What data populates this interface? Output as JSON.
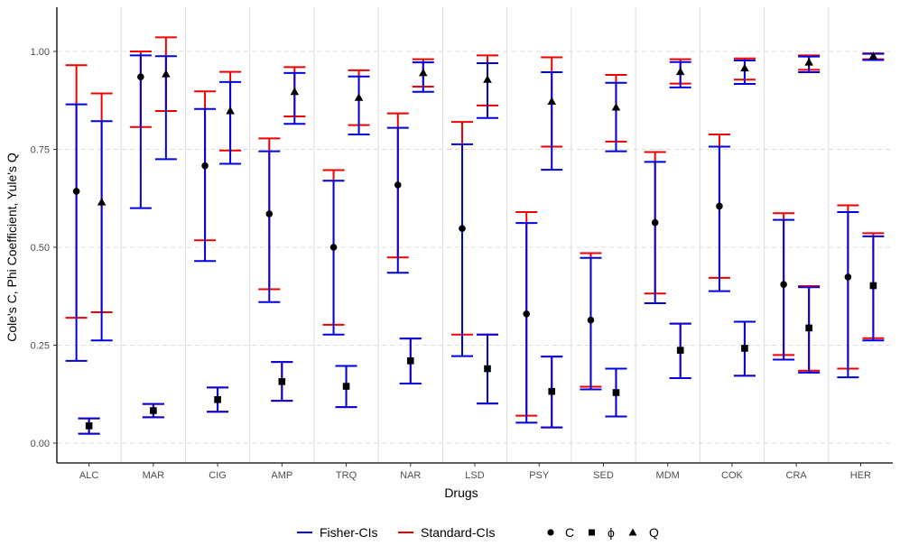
{
  "chart_data": {
    "type": "errorbar",
    "xlabel": "Drugs",
    "ylabel": "Cole's C, Phi Coefficient, Yule's Q",
    "ylim": [
      -0.05,
      1.11
    ],
    "yticks": [
      0.0,
      0.25,
      0.5,
      0.75,
      1.0
    ],
    "ytick_labels": [
      "0.00",
      "0.25",
      "0.50",
      "0.75",
      "1.00"
    ],
    "categories": [
      "ALC",
      "MAR",
      "CIG",
      "AMP",
      "TRQ",
      "NAR",
      "LSD",
      "PSY",
      "SED",
      "MDM",
      "COK",
      "CRA",
      "HER"
    ],
    "colors": {
      "fisher": "#0000dd",
      "standard": "#ee0000",
      "point": "#000000",
      "grid": "#dddddd"
    },
    "legend": {
      "position": "bottom",
      "fisher_label": "Fisher-CIs",
      "standard_label": "Standard-CIs",
      "C_label": "C",
      "phi_label": "ϕ",
      "Q_label": "Q"
    },
    "series": [
      {
        "name": "C",
        "marker": "circle",
        "values": [
          0.643,
          0.935,
          0.708,
          0.585,
          0.5,
          0.659,
          0.548,
          0.33,
          0.314,
          0.563,
          0.605,
          0.405,
          0.424
        ],
        "fisher_ci": [
          [
            0.21,
            0.865
          ],
          [
            0.6,
            0.99
          ],
          [
            0.465,
            0.853
          ],
          [
            0.36,
            0.745
          ],
          [
            0.277,
            0.67
          ],
          [
            0.435,
            0.805
          ],
          [
            0.222,
            0.763
          ],
          [
            0.052,
            0.562
          ],
          [
            0.137,
            0.473
          ],
          [
            0.357,
            0.718
          ],
          [
            0.388,
            0.757
          ],
          [
            0.213,
            0.57
          ],
          [
            0.168,
            0.59
          ]
        ],
        "standard_ci": [
          [
            0.32,
            0.965
          ],
          [
            0.807,
            1.0
          ],
          [
            0.518,
            0.898
          ],
          [
            0.393,
            0.778
          ],
          [
            0.302,
            0.697
          ],
          [
            0.474,
            0.842
          ],
          [
            0.277,
            0.82
          ],
          [
            0.07,
            0.59
          ],
          [
            0.144,
            0.485
          ],
          [
            0.382,
            0.743
          ],
          [
            0.422,
            0.788
          ],
          [
            0.225,
            0.587
          ],
          [
            0.19,
            0.607
          ]
        ]
      },
      {
        "name": "phi",
        "marker": "square",
        "values": [
          0.044,
          0.083,
          0.111,
          0.157,
          0.145,
          0.21,
          0.19,
          0.132,
          0.129,
          0.237,
          0.242,
          0.294,
          0.402
        ],
        "fisher_ci": [
          [
            0.024,
            0.063
          ],
          [
            0.066,
            0.1
          ],
          [
            0.08,
            0.142
          ],
          [
            0.108,
            0.207
          ],
          [
            0.092,
            0.197
          ],
          [
            0.152,
            0.267
          ],
          [
            0.101,
            0.277
          ],
          [
            0.04,
            0.221
          ],
          [
            0.068,
            0.19
          ],
          [
            0.166,
            0.305
          ],
          [
            0.172,
            0.31
          ],
          [
            0.18,
            0.398
          ],
          [
            0.262,
            0.528
          ]
        ],
        "standard_ci": [
          [
            0.024,
            0.063
          ],
          [
            0.066,
            0.1
          ],
          [
            0.08,
            0.142
          ],
          [
            0.108,
            0.207
          ],
          [
            0.092,
            0.197
          ],
          [
            0.152,
            0.267
          ],
          [
            0.101,
            0.277
          ],
          [
            0.04,
            0.221
          ],
          [
            0.068,
            0.19
          ],
          [
            0.166,
            0.305
          ],
          [
            0.172,
            0.31
          ],
          [
            0.185,
            0.401
          ],
          [
            0.268,
            0.536
          ]
        ]
      },
      {
        "name": "Q",
        "marker": "triangle",
        "values": [
          0.615,
          0.942,
          0.848,
          0.897,
          0.882,
          0.945,
          0.928,
          0.872,
          0.857,
          0.948,
          0.957,
          0.972,
          0.988
        ],
        "fisher_ci": [
          [
            0.262,
            0.822
          ],
          [
            0.725,
            0.988
          ],
          [
            0.713,
            0.922
          ],
          [
            0.815,
            0.945
          ],
          [
            0.788,
            0.936
          ],
          [
            0.897,
            0.972
          ],
          [
            0.83,
            0.97
          ],
          [
            0.698,
            0.947
          ],
          [
            0.745,
            0.92
          ],
          [
            0.908,
            0.973
          ],
          [
            0.917,
            0.977
          ],
          [
            0.947,
            0.987
          ],
          [
            0.978,
            0.994
          ]
        ],
        "standard_ci": [
          [
            0.334,
            0.893
          ],
          [
            0.848,
            1.036
          ],
          [
            0.747,
            0.948
          ],
          [
            0.834,
            0.96
          ],
          [
            0.812,
            0.952
          ],
          [
            0.91,
            0.98
          ],
          [
            0.862,
            0.99
          ],
          [
            0.757,
            0.985
          ],
          [
            0.77,
            0.94
          ],
          [
            0.918,
            0.98
          ],
          [
            0.928,
            0.982
          ],
          [
            0.953,
            0.99
          ],
          [
            0.98,
            0.995
          ]
        ]
      }
    ]
  }
}
